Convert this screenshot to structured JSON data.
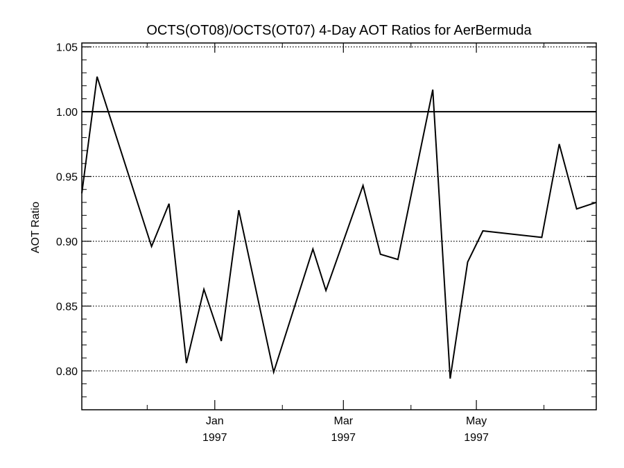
{
  "chart_data": {
    "type": "line",
    "title": "OCTS(OT08)/OCTS(OT07) 4-Day AOT Ratios for AerBermuda",
    "xlabel": "",
    "ylabel": "AOT Ratio",
    "ylim": [
      0.77,
      1.053
    ],
    "xlim": [
      "1996-11-01",
      "1997-06-25"
    ],
    "grid": "horizontal dotted at labeled y ticks",
    "y_ticks": [
      {
        "value": 0.8,
        "label": "0.80"
      },
      {
        "value": 0.85,
        "label": "0.85"
      },
      {
        "value": 0.9,
        "label": "0.90"
      },
      {
        "value": 0.95,
        "label": "0.95"
      },
      {
        "value": 1.0,
        "label": "1.00"
      },
      {
        "value": 1.05,
        "label": "1.05"
      }
    ],
    "x_ticks": [
      {
        "date": "1997-01-01",
        "month": "Jan",
        "year": "1997"
      },
      {
        "date": "1997-03-01",
        "month": "Mar",
        "year": "1997"
      },
      {
        "date": "1997-05-01",
        "month": "May",
        "year": "1997"
      }
    ],
    "x_minor_ticks": [
      "1996-12-01",
      "1997-02-01",
      "1997-04-01",
      "1997-06-01"
    ],
    "reference_line": {
      "y": 1.0
    },
    "series": [
      {
        "x": [
          "1996-11-01",
          "1996-11-08",
          "1996-12-03",
          "1996-12-11",
          "1996-12-19",
          "1996-12-27",
          "1997-01-04",
          "1997-01-12",
          "1997-01-28",
          "1997-02-15",
          "1997-02-21",
          "1997-03-10",
          "1997-03-18",
          "1997-03-26",
          "1997-04-11",
          "1997-04-19",
          "1997-04-27",
          "1997-05-04",
          "1997-05-31",
          "1997-06-08",
          "1997-06-16",
          "1997-06-25"
        ],
        "y": [
          0.937,
          1.027,
          0.896,
          0.929,
          0.806,
          0.863,
          0.823,
          0.924,
          0.799,
          0.894,
          0.862,
          0.943,
          0.89,
          0.886,
          1.017,
          0.794,
          0.884,
          0.908,
          0.903,
          0.975,
          0.925,
          0.93
        ]
      }
    ]
  }
}
